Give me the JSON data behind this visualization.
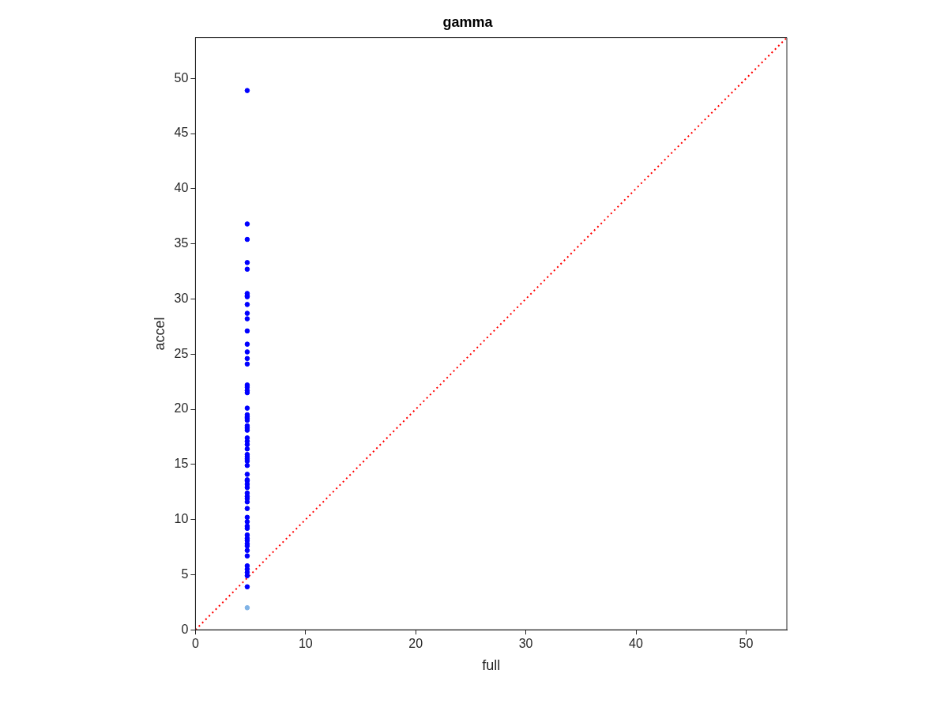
{
  "chart_data": {
    "type": "scatter",
    "title": "gamma",
    "xlabel": "full",
    "ylabel": "accel",
    "xlim": [
      0,
      53.7
    ],
    "ylim": [
      0,
      53.7
    ],
    "xticks": [
      0,
      10,
      20,
      30,
      40,
      50
    ],
    "yticks": [
      0,
      5,
      10,
      15,
      20,
      25,
      30,
      35,
      40,
      45,
      50
    ],
    "grid": false,
    "legend": false,
    "marker": "circle",
    "series": [
      {
        "color": "#0000ff",
        "x": [
          4.7,
          4.7,
          4.7,
          4.7,
          4.7,
          4.7,
          4.7,
          4.7,
          4.7,
          4.7,
          4.7,
          4.7,
          4.7,
          4.7,
          4.7,
          4.7,
          4.7,
          4.7,
          4.7,
          4.7,
          4.7,
          4.7,
          4.7,
          4.7,
          4.7,
          4.7,
          4.7,
          4.7,
          4.7,
          4.7,
          4.7,
          4.7,
          4.7,
          4.7,
          4.7,
          4.7,
          4.7,
          4.7,
          4.7,
          4.7,
          4.7,
          4.7,
          4.7,
          4.7,
          4.7,
          4.7,
          4.7,
          4.7,
          4.7,
          4.7,
          4.7,
          4.7,
          4.7,
          4.7,
          4.7,
          4.7,
          4.7,
          4.7,
          4.7,
          4.7,
          4.7,
          4.7,
          4.7
        ],
        "values": [
          48.9,
          36.8,
          35.4,
          33.3,
          32.7,
          30.5,
          30.3,
          30.2,
          29.5,
          28.7,
          28.2,
          27.1,
          25.9,
          25.2,
          24.6,
          24.1,
          22.2,
          22.0,
          21.7,
          21.5,
          20.1,
          19.5,
          19.3,
          19.2,
          19.0,
          18.5,
          18.3,
          18.1,
          17.4,
          17.1,
          16.8,
          16.4,
          15.9,
          15.7,
          15.5,
          15.3,
          14.9,
          14.1,
          13.6,
          13.5,
          13.2,
          12.9,
          12.4,
          12.1,
          11.9,
          11.6,
          11.0,
          10.2,
          9.8,
          9.4,
          9.2,
          8.6,
          8.3,
          8.1,
          7.8,
          7.6,
          7.2,
          6.7,
          5.8,
          5.5,
          5.2,
          4.9,
          3.9
        ]
      },
      {
        "color": "#80b3e6",
        "x": [
          4.7
        ],
        "values": [
          2.0
        ]
      },
      {
        "type": "line",
        "color": "#ff0000",
        "line_style": "dotted",
        "marker": "none",
        "x": [
          0,
          53.7
        ],
        "values": [
          0,
          53.7
        ]
      }
    ]
  }
}
